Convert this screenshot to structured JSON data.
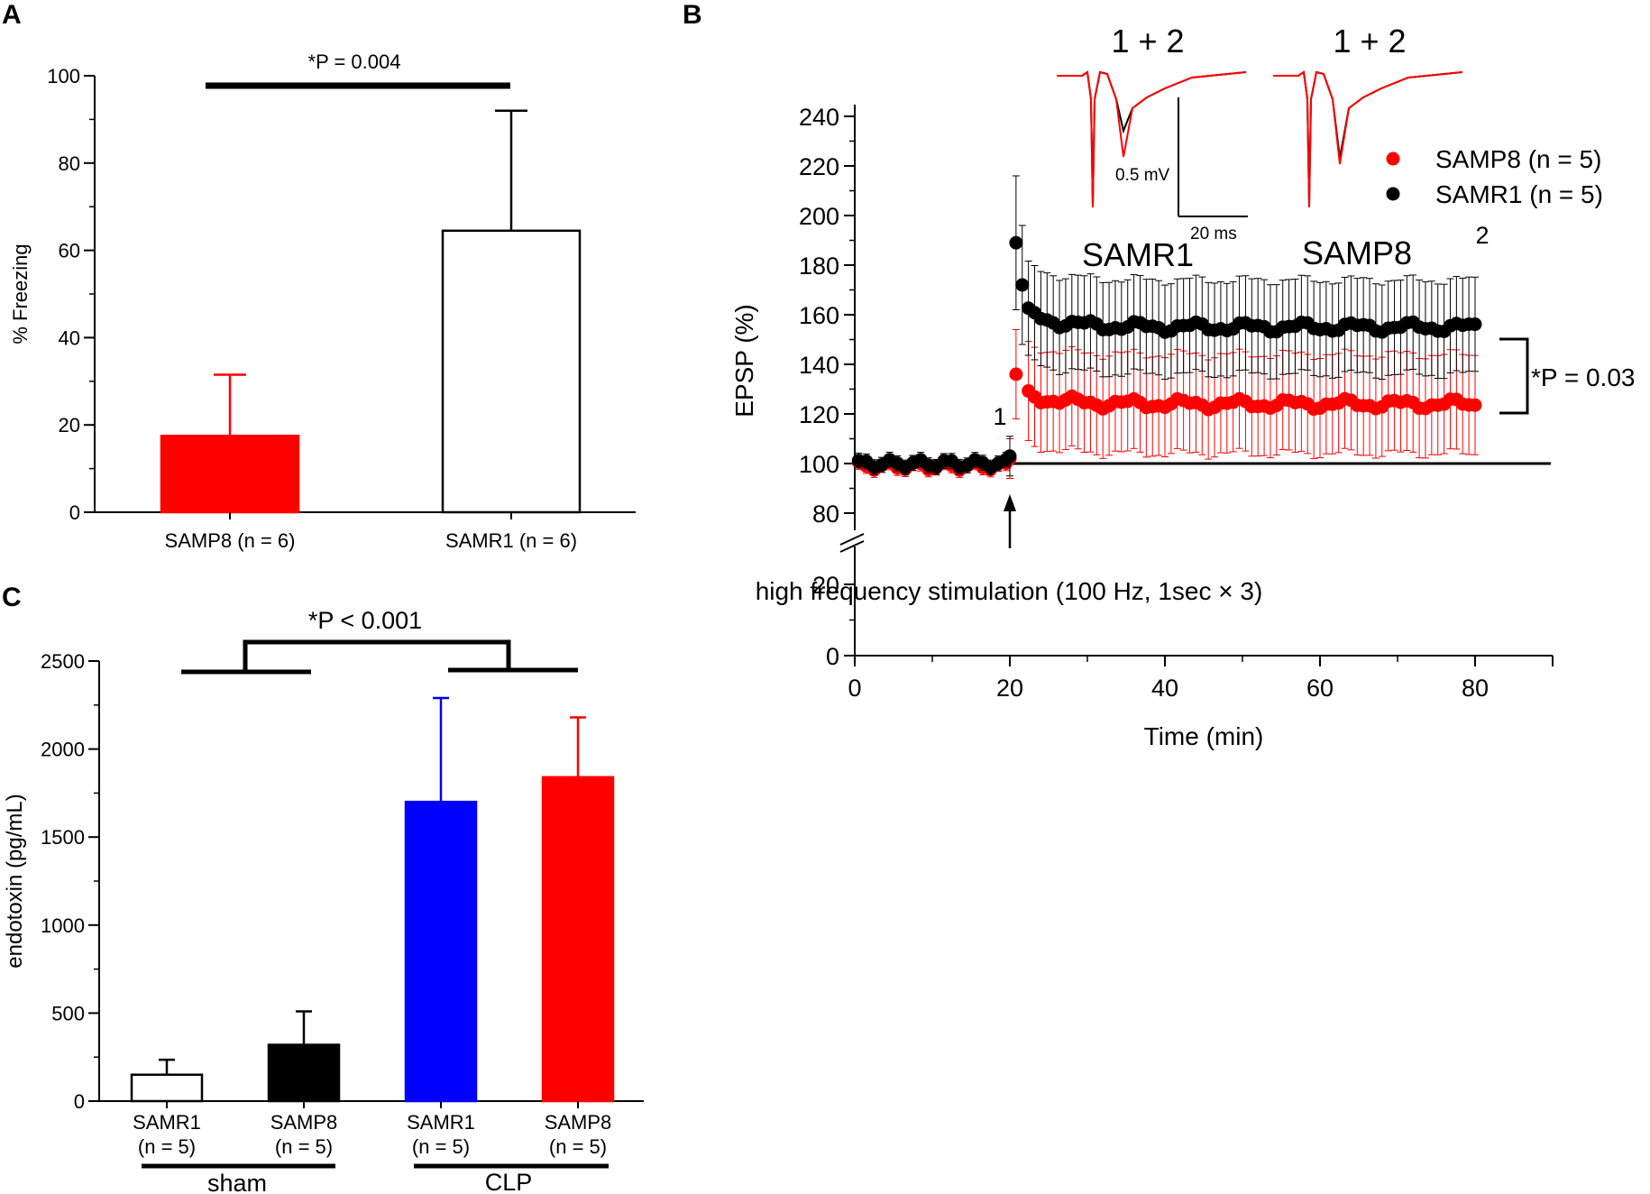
{
  "colors": {
    "red": "#ff0000",
    "black": "#000000",
    "blue": "#0000ff",
    "white": "#ffffff"
  },
  "panels": {
    "a": {
      "letter": "A"
    },
    "b": {
      "letter": "B"
    },
    "c": {
      "letter": "C"
    }
  },
  "chart_data": [
    {
      "id": "A",
      "type": "bar",
      "ylabel": "% Freezing",
      "ylim": [
        0,
        100
      ],
      "yticks": [
        0,
        20,
        40,
        60,
        80,
        100
      ],
      "categories": [
        "SAMP8 (n = 6)",
        "SAMR1 (n = 6)"
      ],
      "values": [
        17.5,
        64.5
      ],
      "errors": [
        14,
        27.5
      ],
      "bar_colors": [
        "red",
        "white"
      ],
      "significance": "*P = 0.004"
    },
    {
      "id": "B",
      "type": "scatter",
      "xlabel": "Time (min)",
      "ylabel": "EPSP (%)",
      "xlim": [
        0,
        90
      ],
      "xticks": [
        0,
        20,
        40,
        60,
        80
      ],
      "yticks_lower": [
        0,
        20
      ],
      "yticks_upper": [
        80,
        100,
        120,
        140,
        160,
        180,
        200,
        220,
        240
      ],
      "baseline": 100,
      "series": [
        {
          "name": "SAMP8 (n = 5)",
          "color": "red",
          "pre_mean": 99,
          "first_post": 136,
          "plateau_mean": 124,
          "error_post": 20
        },
        {
          "name": "SAMR1 (n = 5)",
          "color": "black",
          "pre_mean": 100,
          "first_post": 189,
          "second_post": 172,
          "plateau_mean": 155,
          "error_post": 19
        }
      ],
      "annotations": {
        "stimulation": "high frequency stimulation (100 Hz, 1sec × 3)",
        "significance": "*P = 0.03",
        "marker_1": "1",
        "marker_2": "2"
      },
      "insets": {
        "samr1_label": "SAMR1",
        "samp8_label": "SAMP8",
        "overlay_label": "1 + 2",
        "scale_mv": "0.5 mV",
        "scale_ms": "20 ms"
      }
    },
    {
      "id": "C",
      "type": "bar",
      "ylabel": "endotoxin (pg/mL)",
      "ylim": [
        0,
        2500
      ],
      "yticks": [
        0,
        500,
        1000,
        1500,
        2000,
        2500
      ],
      "categories": [
        "SAMR1",
        "SAMP8",
        "SAMR1",
        "SAMP8"
      ],
      "n_labels": [
        "(n = 5)",
        "(n = 5)",
        "(n = 5)",
        "(n = 5)"
      ],
      "values": [
        150,
        320,
        1700,
        1840
      ],
      "errors": [
        85,
        190,
        590,
        340
      ],
      "bar_colors": [
        "white",
        "black",
        "blue",
        "red"
      ],
      "groups": [
        "sham",
        "CLP"
      ],
      "significance": "*P < 0.001"
    }
  ]
}
